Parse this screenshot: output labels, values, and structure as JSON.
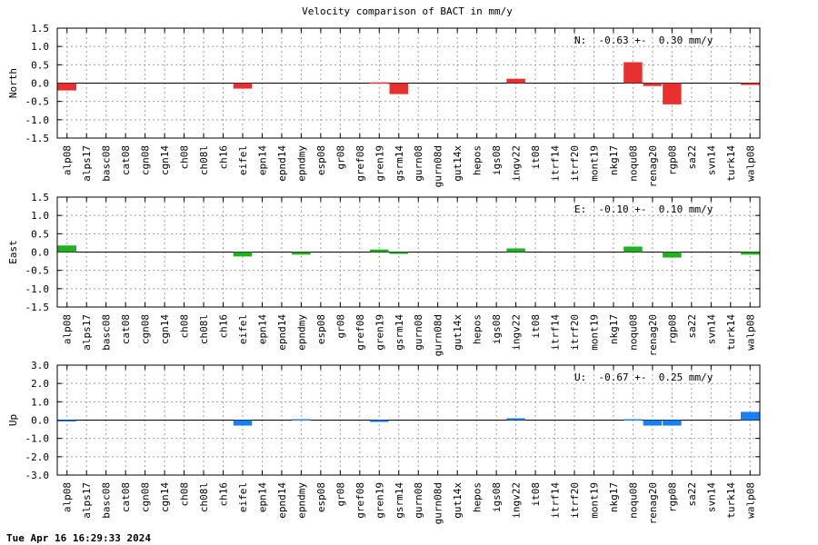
{
  "title": "Velocity comparison of BACT in mm/y",
  "footer": "Tue Apr 16 16:29:33 2024",
  "chart_data": [
    {
      "type": "bar",
      "ylabel": "North",
      "annotation": "N:  -0.63 +-  0.30 mm/y",
      "color": "#e83030",
      "ylim": [
        -1.5,
        1.5
      ],
      "yticks": [
        "1.5",
        "1.0",
        "0.5",
        "0.0",
        "-0.5",
        "-1.0",
        "-1.5"
      ],
      "categories": [
        "alp08",
        "alps17",
        "basc08",
        "cat08",
        "cgn08",
        "cgn14",
        "ch08",
        "ch08l",
        "ch16",
        "eifel",
        "epn14",
        "epnd14",
        "epndmy",
        "esp08",
        "gr08",
        "gref08",
        "gren19",
        "gsrm14",
        "gurn08",
        "gurn08d",
        "gut14x",
        "hepos",
        "igs08",
        "ingv22",
        "it08",
        "itrf14",
        "itrf20",
        "mont19",
        "nkg17",
        "noqu08",
        "renag20",
        "rgp08",
        "sa22",
        "svn14",
        "turk14",
        "walp08"
      ],
      "values": [
        -0.2,
        null,
        null,
        null,
        null,
        null,
        null,
        null,
        null,
        -0.15,
        null,
        null,
        null,
        null,
        null,
        null,
        0.02,
        -0.3,
        null,
        null,
        null,
        null,
        null,
        0.12,
        null,
        null,
        null,
        null,
        null,
        0.57,
        -0.08,
        -0.58,
        null,
        null,
        null,
        -0.05
      ]
    },
    {
      "type": "bar",
      "ylabel": "East",
      "annotation": "E:  -0.10 +-  0.10 mm/y",
      "color": "#20b020",
      "ylim": [
        -1.5,
        1.5
      ],
      "yticks": [
        "1.5",
        "1.0",
        "0.5",
        "0.0",
        "-0.5",
        "-1.0",
        "-1.5"
      ],
      "categories": [
        "alp08",
        "alps17",
        "basc08",
        "cat08",
        "cgn08",
        "cgn14",
        "ch08",
        "ch08l",
        "ch16",
        "eifel",
        "epn14",
        "epnd14",
        "epndmy",
        "esp08",
        "gr08",
        "gref08",
        "gren19",
        "gsrm14",
        "gurn08",
        "gurn08d",
        "gut14x",
        "hepos",
        "igs08",
        "ingv22",
        "it08",
        "itrf14",
        "itrf20",
        "mont19",
        "nkg17",
        "noqu08",
        "renag20",
        "rgp08",
        "sa22",
        "svn14",
        "turk14",
        "walp08"
      ],
      "values": [
        0.18,
        null,
        null,
        null,
        null,
        null,
        null,
        null,
        null,
        -0.12,
        null,
        null,
        -0.07,
        null,
        null,
        null,
        0.07,
        -0.05,
        null,
        null,
        null,
        null,
        null,
        0.1,
        null,
        null,
        null,
        null,
        null,
        0.15,
        null,
        -0.15,
        null,
        null,
        null,
        -0.07
      ]
    },
    {
      "type": "bar",
      "ylabel": "Up",
      "annotation": "U:  -0.67 +-  0.25 mm/y",
      "color": "#1880f0",
      "ylim": [
        -3.0,
        3.0
      ],
      "yticks": [
        "3.0",
        "2.0",
        "1.0",
        "0.0",
        "-1.0",
        "-2.0",
        "-3.0"
      ],
      "categories": [
        "alp08",
        "alps17",
        "basc08",
        "cat08",
        "cgn08",
        "cgn14",
        "ch08",
        "ch08l",
        "ch16",
        "eifel",
        "epn14",
        "epnd14",
        "epndmy",
        "esp08",
        "gr08",
        "gref08",
        "gren19",
        "gsrm14",
        "gurn08",
        "gurn08d",
        "gut14x",
        "hepos",
        "igs08",
        "ingv22",
        "it08",
        "itrf14",
        "itrf20",
        "mont19",
        "nkg17",
        "noqu08",
        "renag20",
        "rgp08",
        "sa22",
        "svn14",
        "turk14",
        "walp08"
      ],
      "values": [
        -0.05,
        null,
        null,
        null,
        null,
        null,
        null,
        null,
        null,
        -0.3,
        null,
        null,
        0.05,
        null,
        null,
        null,
        -0.1,
        null,
        null,
        null,
        null,
        null,
        null,
        0.1,
        null,
        null,
        null,
        null,
        null,
        0.05,
        -0.3,
        -0.3,
        null,
        null,
        null,
        0.45
      ]
    }
  ]
}
